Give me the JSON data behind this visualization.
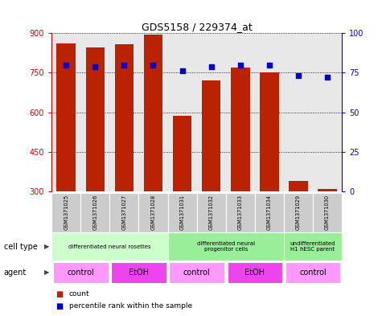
{
  "title": "GDS5158 / 229374_at",
  "samples": [
    "GSM1371025",
    "GSM1371026",
    "GSM1371027",
    "GSM1371028",
    "GSM1371031",
    "GSM1371032",
    "GSM1371033",
    "GSM1371034",
    "GSM1371029",
    "GSM1371030"
  ],
  "counts": [
    860,
    845,
    858,
    895,
    585,
    720,
    770,
    750,
    338,
    308
  ],
  "percentile_ranks": [
    80,
    79,
    80,
    80,
    76,
    79,
    80,
    80,
    73,
    72
  ],
  "ylim_left": [
    300,
    900
  ],
  "ylim_right": [
    0,
    100
  ],
  "yticks_left": [
    300,
    450,
    600,
    750,
    900
  ],
  "yticks_right": [
    0,
    25,
    50,
    75,
    100
  ],
  "bar_color": "#BB2200",
  "dot_color": "#0000CC",
  "bar_width": 0.65,
  "cell_type_groups": [
    {
      "label": "differentiated neural rosettes",
      "start": 0,
      "end": 3,
      "color": "#CCFFCC"
    },
    {
      "label": "differentiated neural\nprogenitor cells",
      "start": 4,
      "end": 7,
      "color": "#99EE99"
    },
    {
      "label": "undifferentiated\nH1 hESC parent",
      "start": 8,
      "end": 9,
      "color": "#99EE99"
    }
  ],
  "agent_groups": [
    {
      "label": "control",
      "start": 0,
      "end": 1,
      "color": "#FF99FF"
    },
    {
      "label": "EtOH",
      "start": 2,
      "end": 3,
      "color": "#EE44EE"
    },
    {
      "label": "control",
      "start": 4,
      "end": 5,
      "color": "#FF99FF"
    },
    {
      "label": "EtOH",
      "start": 6,
      "end": 7,
      "color": "#EE44EE"
    },
    {
      "label": "control",
      "start": 8,
      "end": 9,
      "color": "#FF99FF"
    }
  ],
  "bar_color_hex": "#BB2200",
  "dot_color_hex": "#0000CC",
  "left_axis_color": "#CC0000",
  "right_axis_color": "#0000CC",
  "sample_bg_color": "#CCCCCC",
  "plot_bg_color": "#E8E8E8"
}
